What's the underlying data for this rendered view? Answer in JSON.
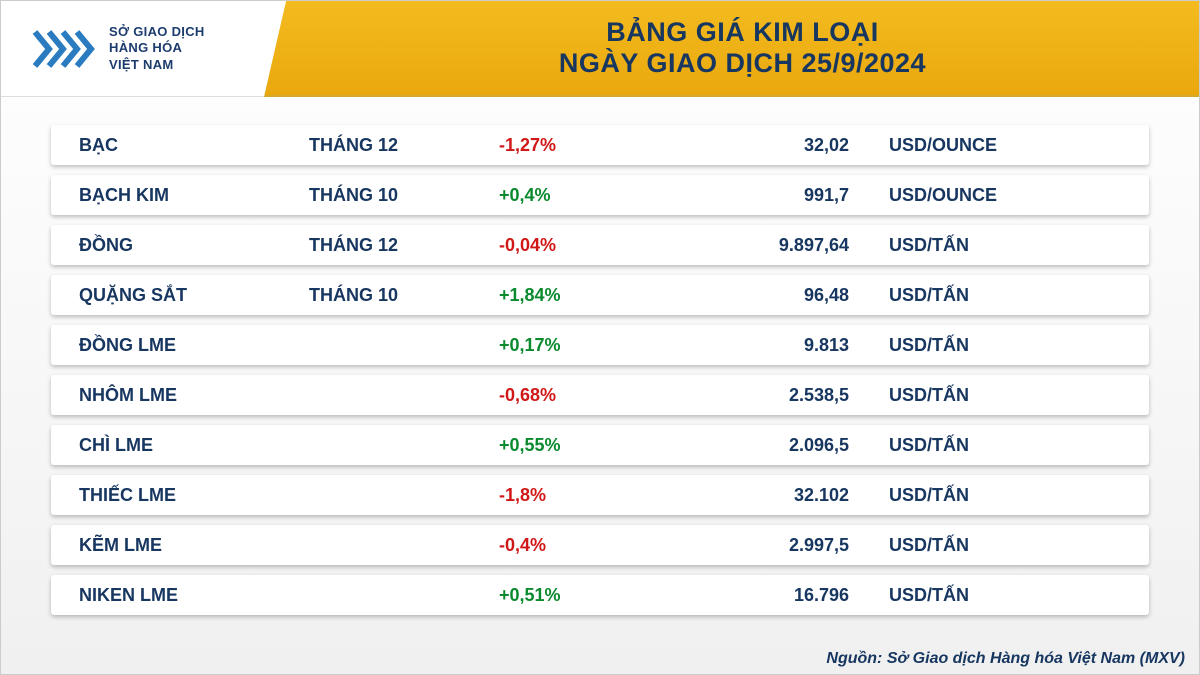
{
  "header": {
    "logo": {
      "line1": "SỞ GIAO DỊCH",
      "line2": "HÀNG HÓA",
      "line3": "VIỆT NAM",
      "chevron_color": "#2a7bbf",
      "accent_color": "#efb416"
    },
    "title_line1": "BẢNG GIÁ KIM LOẠI",
    "title_line2": "NGÀY GIAO DỊCH 25/9/2024",
    "title_bg": "#efb416",
    "title_text_color": "#173660"
  },
  "table": {
    "type": "table",
    "row_bg": "#ffffff",
    "text_color": "#173660",
    "up_color": "#0a8a2e",
    "down_color": "#d01818",
    "font_size": 18,
    "columns": [
      "name",
      "month",
      "change",
      "price",
      "unit"
    ],
    "rows": [
      {
        "name": "BẠC",
        "month": "THÁNG 12",
        "change": "-1,27%",
        "dir": "down",
        "price": "32,02",
        "unit": "USD/OUNCE"
      },
      {
        "name": "BẠCH KIM",
        "month": "THÁNG 10",
        "change": "+0,4%",
        "dir": "up",
        "price": "991,7",
        "unit": "USD/OUNCE"
      },
      {
        "name": "ĐỒNG",
        "month": "THÁNG 12",
        "change": "-0,04%",
        "dir": "down",
        "price": "9.897,64",
        "unit": "USD/TẤN"
      },
      {
        "name": "QUẶNG SẮT",
        "month": "THÁNG 10",
        "change": "+1,84%",
        "dir": "up",
        "price": "96,48",
        "unit": "USD/TẤN"
      },
      {
        "name": "ĐỒNG LME",
        "month": "",
        "change": "+0,17%",
        "dir": "up",
        "price": "9.813",
        "unit": "USD/TẤN"
      },
      {
        "name": "NHÔM LME",
        "month": "",
        "change": "-0,68%",
        "dir": "down",
        "price": "2.538,5",
        "unit": "USD/TẤN"
      },
      {
        "name": "CHÌ LME",
        "month": "",
        "change": "+0,55%",
        "dir": "up",
        "price": "2.096,5",
        "unit": "USD/TẤN"
      },
      {
        "name": "THIẾC LME",
        "month": "",
        "change": "-1,8%",
        "dir": "down",
        "price": "32.102",
        "unit": "USD/TẤN"
      },
      {
        "name": "KẼM LME",
        "month": "",
        "change": "-0,4%",
        "dir": "down",
        "price": "2.997,5",
        "unit": "USD/TẤN"
      },
      {
        "name": "NIKEN LME",
        "month": "",
        "change": "+0,51%",
        "dir": "up",
        "price": "16.796",
        "unit": "USD/TẤN"
      }
    ]
  },
  "footer": {
    "source": "Nguồn: Sở Giao dịch Hàng hóa Việt Nam (MXV)"
  }
}
